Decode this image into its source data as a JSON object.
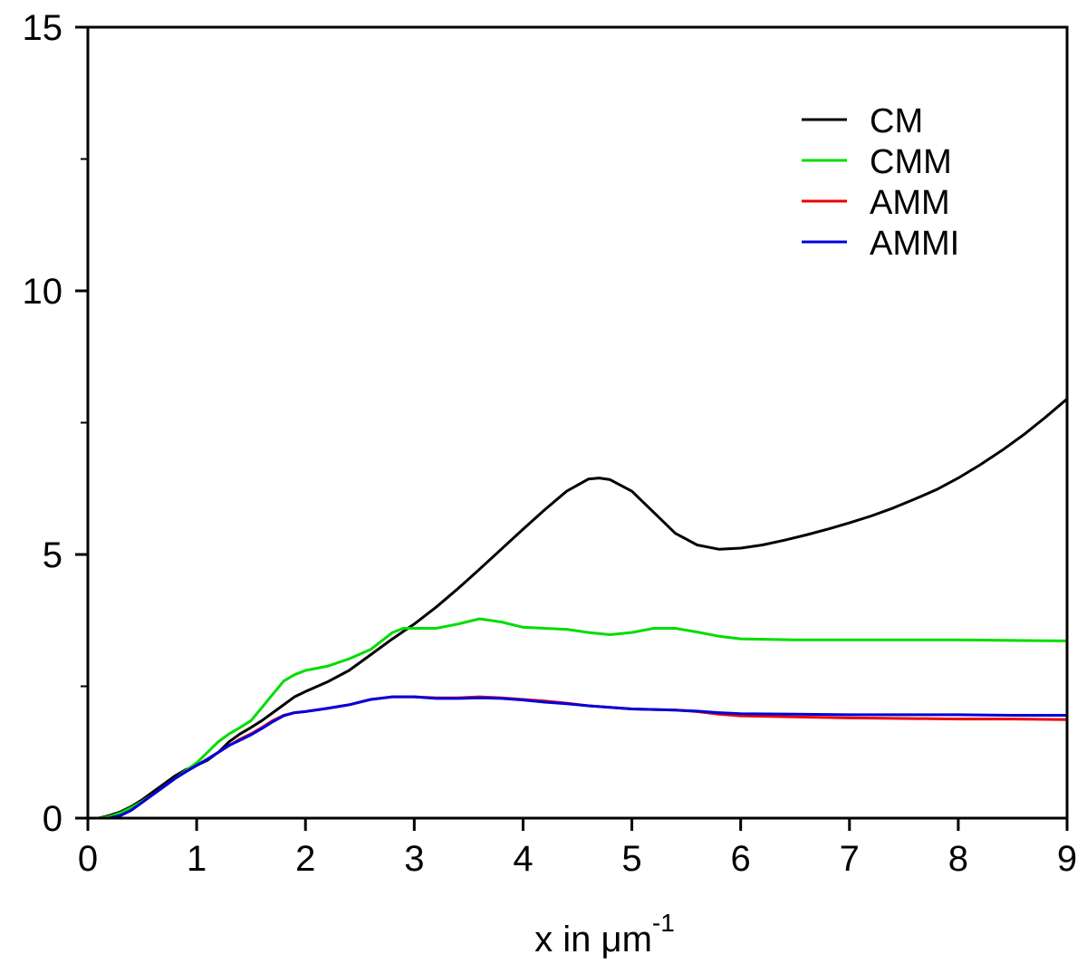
{
  "chart_data": {
    "type": "line",
    "title": "",
    "xlabel": {
      "main": "x in ",
      "mu": "μ",
      "unit": "m",
      "exponent": "-1"
    },
    "ylabel": "",
    "xlim": [
      0,
      9
    ],
    "ylim": [
      0,
      15
    ],
    "grid": false,
    "legend_position": "top-right",
    "x_ticks": [
      "0",
      "1",
      "2",
      "3",
      "4",
      "5",
      "6",
      "7",
      "8",
      "9"
    ],
    "y_ticks": [
      "0",
      "5",
      "10",
      "15"
    ],
    "x_tick_values": [
      0,
      1,
      2,
      3,
      4,
      5,
      6,
      7,
      8,
      9
    ],
    "y_tick_values": [
      0,
      5,
      10,
      15
    ],
    "y_minor_tick_values": [
      2.5,
      7.5,
      12.5
    ],
    "series": [
      {
        "name": "CM",
        "color": "#000000",
        "x": [
          0.0,
          0.1,
          0.2,
          0.3,
          0.4,
          0.5,
          0.6,
          0.7,
          0.8,
          0.9,
          1.0,
          1.1,
          1.2,
          1.3,
          1.4,
          1.5,
          1.6,
          1.7,
          1.8,
          1.9,
          2.0,
          2.2,
          2.4,
          2.6,
          2.8,
          3.0,
          3.2,
          3.4,
          3.6,
          3.8,
          4.0,
          4.2,
          4.4,
          4.6,
          4.7,
          4.8,
          5.0,
          5.2,
          5.4,
          5.6,
          5.8,
          6.0,
          6.2,
          6.4,
          6.6,
          6.8,
          7.0,
          7.2,
          7.4,
          7.6,
          7.8,
          8.0,
          8.2,
          8.4,
          8.6,
          8.8,
          9.0
        ],
        "y": [
          0.0,
          0.0,
          0.05,
          0.12,
          0.22,
          0.35,
          0.5,
          0.65,
          0.8,
          0.92,
          1.0,
          1.1,
          1.25,
          1.45,
          1.6,
          1.72,
          1.85,
          2.0,
          2.15,
          2.3,
          2.4,
          2.58,
          2.8,
          3.1,
          3.4,
          3.68,
          4.0,
          4.35,
          4.72,
          5.1,
          5.48,
          5.85,
          6.2,
          6.43,
          6.45,
          6.42,
          6.2,
          5.8,
          5.4,
          5.18,
          5.1,
          5.12,
          5.18,
          5.27,
          5.37,
          5.48,
          5.6,
          5.73,
          5.88,
          6.05,
          6.23,
          6.45,
          6.7,
          6.97,
          7.27,
          7.6,
          7.95
        ]
      },
      {
        "name": "CMM",
        "color": "#00dd00",
        "x": [
          0.0,
          0.1,
          0.2,
          0.3,
          0.4,
          0.5,
          0.6,
          0.7,
          0.8,
          0.9,
          1.0,
          1.1,
          1.2,
          1.3,
          1.4,
          1.5,
          1.6,
          1.7,
          1.8,
          1.9,
          2.0,
          2.2,
          2.4,
          2.6,
          2.8,
          2.9,
          3.0,
          3.2,
          3.4,
          3.6,
          3.8,
          4.0,
          4.2,
          4.4,
          4.6,
          4.8,
          5.0,
          5.2,
          5.4,
          5.6,
          5.8,
          6.0,
          6.5,
          7.0,
          7.5,
          8.0,
          8.5,
          9.0
        ],
        "y": [
          0.0,
          0.0,
          0.03,
          0.1,
          0.2,
          0.32,
          0.45,
          0.6,
          0.75,
          0.9,
          1.05,
          1.25,
          1.45,
          1.6,
          1.72,
          1.85,
          2.1,
          2.35,
          2.6,
          2.72,
          2.8,
          2.88,
          3.02,
          3.2,
          3.52,
          3.6,
          3.6,
          3.6,
          3.68,
          3.78,
          3.72,
          3.62,
          3.6,
          3.58,
          3.52,
          3.48,
          3.52,
          3.6,
          3.6,
          3.53,
          3.45,
          3.4,
          3.38,
          3.38,
          3.38,
          3.38,
          3.37,
          3.36
        ]
      },
      {
        "name": "AMM",
        "color": "#ee0000",
        "x": [
          0.0,
          0.1,
          0.2,
          0.3,
          0.4,
          0.5,
          0.6,
          0.7,
          0.8,
          0.9,
          1.0,
          1.1,
          1.2,
          1.3,
          1.4,
          1.5,
          1.6,
          1.7,
          1.8,
          1.9,
          2.0,
          2.2,
          2.4,
          2.6,
          2.8,
          3.0,
          3.2,
          3.4,
          3.6,
          3.8,
          4.0,
          4.2,
          4.4,
          4.6,
          4.8,
          5.0,
          5.2,
          5.4,
          5.6,
          5.8,
          6.0,
          6.5,
          7.0,
          7.5,
          8.0,
          8.5,
          9.0
        ],
        "y": [
          0.0,
          0.0,
          0.0,
          0.05,
          0.15,
          0.3,
          0.45,
          0.6,
          0.75,
          0.88,
          1.0,
          1.12,
          1.25,
          1.38,
          1.5,
          1.6,
          1.72,
          1.85,
          1.95,
          2.0,
          2.02,
          2.08,
          2.15,
          2.25,
          2.3,
          2.3,
          2.28,
          2.28,
          2.3,
          2.28,
          2.25,
          2.22,
          2.18,
          2.13,
          2.1,
          2.07,
          2.06,
          2.05,
          2.02,
          1.97,
          1.94,
          1.92,
          1.9,
          1.89,
          1.88,
          1.88,
          1.87
        ]
      },
      {
        "name": "AMMI",
        "color": "#0000dd",
        "x": [
          0.0,
          0.1,
          0.2,
          0.3,
          0.4,
          0.5,
          0.6,
          0.7,
          0.8,
          0.9,
          1.0,
          1.1,
          1.2,
          1.3,
          1.4,
          1.5,
          1.6,
          1.7,
          1.8,
          1.9,
          2.0,
          2.2,
          2.4,
          2.6,
          2.8,
          3.0,
          3.2,
          3.4,
          3.6,
          3.8,
          4.0,
          4.2,
          4.4,
          4.6,
          4.8,
          5.0,
          5.2,
          5.4,
          5.6,
          5.8,
          6.0,
          6.5,
          7.0,
          7.5,
          8.0,
          8.5,
          9.0
        ],
        "y": [
          0.0,
          0.0,
          0.0,
          0.05,
          0.15,
          0.3,
          0.45,
          0.6,
          0.75,
          0.88,
          1.0,
          1.12,
          1.25,
          1.38,
          1.48,
          1.58,
          1.7,
          1.83,
          1.94,
          2.0,
          2.02,
          2.08,
          2.15,
          2.25,
          2.3,
          2.3,
          2.27,
          2.27,
          2.28,
          2.27,
          2.24,
          2.2,
          2.17,
          2.13,
          2.1,
          2.07,
          2.06,
          2.05,
          2.03,
          2.0,
          1.98,
          1.97,
          1.96,
          1.96,
          1.96,
          1.95,
          1.95
        ]
      }
    ]
  }
}
